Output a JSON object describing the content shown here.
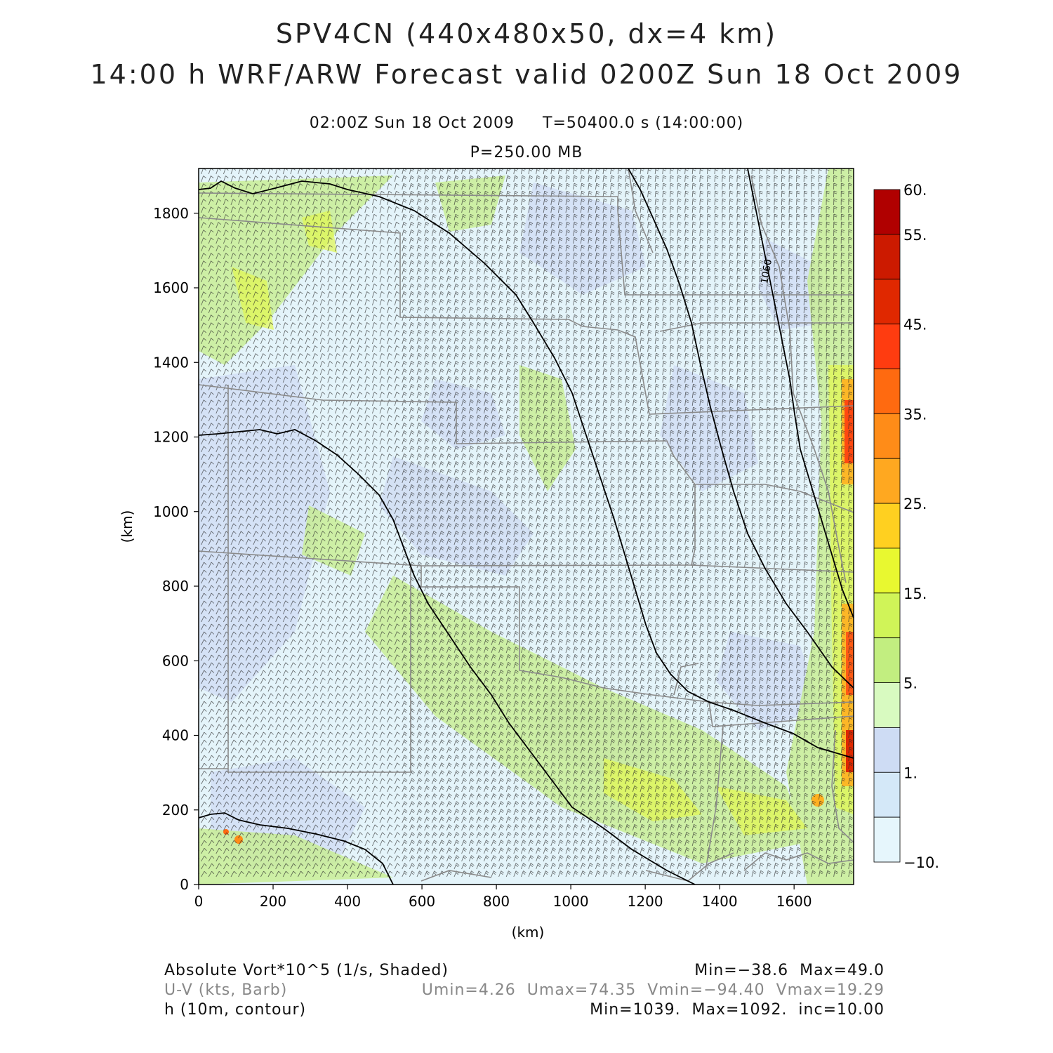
{
  "header": {
    "title_line1": "SPV4CN (440x480x50, dx=4 km)",
    "title_line2": "14:00 h WRF/ARW Forecast valid 0200Z Sun 18 Oct 2009",
    "valid_time": "02:00Z Sun 18 Oct 2009",
    "model_time": "T=50400.0 s (14:00:00)",
    "level": "P=250.00 MB"
  },
  "axes": {
    "x_unit": "(km)",
    "y_unit": "(km)",
    "x_ticks": [
      "0",
      "200",
      "400",
      "600",
      "800",
      "1000",
      "1200",
      "1400",
      "1600"
    ],
    "y_ticks": [
      "0",
      "200",
      "400",
      "600",
      "800",
      "1000",
      "1200",
      "1400",
      "1600",
      "1800"
    ],
    "x_range": [
      0,
      1760
    ],
    "y_range": [
      0,
      1920
    ]
  },
  "colorbar": {
    "labels": [
      "60.",
      "55.",
      "45.",
      "35.",
      "25.",
      "15.",
      "5.",
      "1.",
      "−10."
    ],
    "colors": [
      "#b00000",
      "#cc1a00",
      "#e02800",
      "#ff3c10",
      "#ff6a10",
      "#ff8c18",
      "#ffa820",
      "#ffd020",
      "#e8f830",
      "#d0f458",
      "#c2ee80",
      "#d8fac0",
      "#cedcf4",
      "#d4e8f8",
      "#e6f6fc"
    ]
  },
  "contour": {
    "label": "1060"
  },
  "footer": {
    "field1": "Absolute Vort*10^5 (1/s, Shaded)",
    "field1_stats": "Min=−38.6  Max=49.0",
    "field2": "U-V (kts, Barb)",
    "field2_stats": "Umin=4.26  Umax=74.35  Vmin=−94.40  Vmax=19.29",
    "field3": "h (10m, contour)",
    "field3_stats": "Min=1039.  Max=1092.  inc=10.00"
  },
  "style": {
    "contour_color": "#000000",
    "border_color": "#8a8a8a",
    "field2_color": "#888888"
  }
}
